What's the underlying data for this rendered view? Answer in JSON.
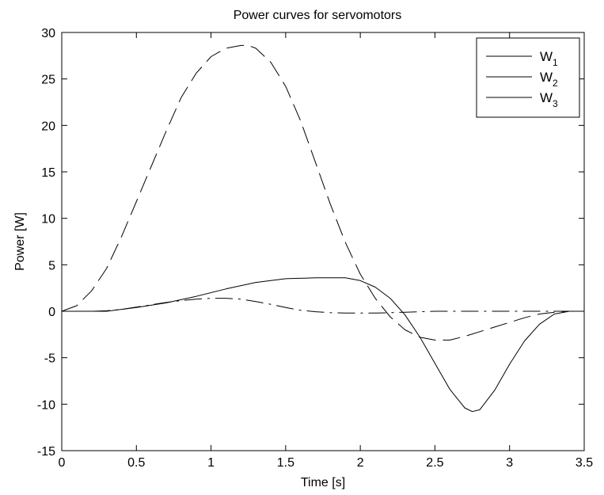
{
  "chart_data": {
    "type": "line",
    "title": "Power curves for servomotors",
    "xlabel": "Time [s]",
    "ylabel": "Power [W]",
    "xlim": [
      0,
      3.5
    ],
    "ylim": [
      -15,
      30
    ],
    "xticks": [
      0,
      0.5,
      1,
      1.5,
      2,
      2.5,
      3,
      3.5
    ],
    "xtick_labels": [
      "0",
      "0.5",
      "1",
      "1.5",
      "2",
      "2.5",
      "3",
      "3.5"
    ],
    "yticks": [
      -15,
      -10,
      -5,
      0,
      5,
      10,
      15,
      20,
      25,
      30
    ],
    "ytick_labels": [
      "-15",
      "-10",
      "-5",
      "0",
      "5",
      "10",
      "15",
      "20",
      "25",
      "30"
    ],
    "grid": false,
    "legend_position": "top-right",
    "line_color": "#000000",
    "series": [
      {
        "name": "W",
        "subscript": "1",
        "style": "dash",
        "x": [
          0,
          0.1,
          0.2,
          0.3,
          0.4,
          0.5,
          0.6,
          0.7,
          0.8,
          0.9,
          1.0,
          1.1,
          1.2,
          1.25,
          1.3,
          1.4,
          1.5,
          1.6,
          1.7,
          1.8,
          1.9,
          2.0,
          2.1,
          2.2,
          2.3,
          2.4,
          2.5,
          2.6,
          2.7,
          2.8,
          2.9,
          3.0,
          3.1,
          3.2,
          3.3,
          3.4,
          3.5
        ],
        "y": [
          0,
          0.6,
          2.2,
          4.6,
          8.0,
          11.8,
          15.6,
          19.4,
          23.0,
          25.6,
          27.4,
          28.3,
          28.6,
          28.6,
          28.3,
          26.8,
          24.2,
          20.5,
          16.0,
          11.5,
          7.4,
          4.0,
          1.4,
          -0.6,
          -2.0,
          -2.8,
          -3.1,
          -3.1,
          -2.7,
          -2.2,
          -1.7,
          -1.2,
          -0.7,
          -0.3,
          -0.1,
          0,
          0
        ]
      },
      {
        "name": "W",
        "subscript": "2",
        "style": "solid",
        "x": [
          0,
          0.2,
          0.3,
          0.5,
          0.7,
          0.9,
          1.1,
          1.3,
          1.5,
          1.7,
          1.9,
          2.0,
          2.1,
          2.2,
          2.3,
          2.4,
          2.5,
          2.6,
          2.7,
          2.75,
          2.8,
          2.9,
          3.0,
          3.1,
          3.2,
          3.3,
          3.4,
          3.5
        ],
        "y": [
          0,
          0,
          0,
          0.4,
          0.9,
          1.6,
          2.4,
          3.1,
          3.5,
          3.6,
          3.6,
          3.3,
          2.6,
          1.4,
          -0.4,
          -2.8,
          -5.6,
          -8.4,
          -10.4,
          -10.8,
          -10.6,
          -8.5,
          -5.7,
          -3.2,
          -1.4,
          -0.3,
          0,
          0
        ]
      },
      {
        "name": "W",
        "subscript": "3",
        "style": "dashdot",
        "x": [
          0,
          0.2,
          0.3,
          0.4,
          0.5,
          0.6,
          0.7,
          0.8,
          0.9,
          1.0,
          1.1,
          1.2,
          1.3,
          1.4,
          1.5,
          1.6,
          1.7,
          1.8,
          1.9,
          2.0,
          2.1,
          2.2,
          2.3,
          2.4,
          2.5,
          2.6,
          2.8,
          3.0,
          3.2,
          3.4,
          3.5
        ],
        "y": [
          0,
          0,
          0.05,
          0.2,
          0.45,
          0.7,
          0.95,
          1.15,
          1.3,
          1.4,
          1.4,
          1.3,
          1.05,
          0.75,
          0.4,
          0.1,
          -0.05,
          -0.15,
          -0.2,
          -0.2,
          -0.2,
          -0.15,
          -0.1,
          -0.05,
          0,
          0,
          0,
          0,
          0,
          0,
          0
        ]
      }
    ]
  }
}
